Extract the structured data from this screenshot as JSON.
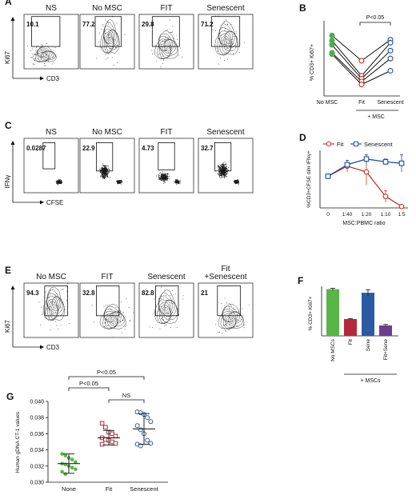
{
  "panels": {
    "A": {
      "letter": "A",
      "titles": [
        "NS",
        "No MSC",
        "FIT",
        "Senescent"
      ],
      "gate_values": [
        "10.1",
        "77.2",
        "29.8",
        "71.2"
      ],
      "x_axis": "CD3",
      "y_axis": "Ki67"
    },
    "C": {
      "letter": "C",
      "titles": [
        "NS",
        "No MSC",
        "FIT",
        "Senescent"
      ],
      "gate_values": [
        "0.0287",
        "22.9",
        "4.73",
        "32.7"
      ],
      "x_axis": "CFSE",
      "y_axis": "IFNγ"
    },
    "E": {
      "letter": "E",
      "titles": [
        "No MSC",
        "FIT",
        "Senescent",
        "Fit\n+Senescent"
      ],
      "title_lines": [
        [
          "No MSC"
        ],
        [
          "FIT"
        ],
        [
          "Senescent"
        ],
        [
          "Fit",
          "+Senescent"
        ]
      ],
      "gate_values": [
        "94.3",
        "32.8",
        "82.8",
        "21"
      ],
      "x_axis": "CD3",
      "y_axis": "Ki67"
    }
  },
  "chart_data": [
    {
      "panel": "B",
      "letter": "B",
      "type": "line",
      "categories": [
        "No MSC",
        "Fit",
        "Senescent"
      ],
      "ylabel": "% CD3+ Ki67+",
      "group_label": "+ MSC",
      "sig_label": "P<0.05",
      "series": [
        {
          "values": [
            84,
            49,
            78
          ],
          "color": "#2e7d32"
        },
        {
          "values": [
            77,
            28,
            74
          ],
          "color": "#1565c0"
        },
        {
          "values": [
            71,
            24,
            63
          ],
          "color": "#1565c0"
        },
        {
          "values": [
            60,
            20,
            52
          ],
          "color": "#1565c0"
        },
        {
          "values": [
            58,
            16,
            35
          ],
          "color": "#1565c0"
        }
      ],
      "marker_colors": {
        "No MSC": "#4caf50",
        "Fit": "#c62828",
        "Senescent": "#1f4e9c"
      },
      "ylim": [
        0,
        100
      ]
    },
    {
      "panel": "D",
      "letter": "D",
      "type": "line",
      "ylabel": "%CD3+CFSE dim IFNγ+",
      "xlabel": "MSC:PBMC ratio",
      "categories": [
        "0",
        "1:40",
        "1:20",
        "1:10",
        "1:5"
      ],
      "legend_position": "top",
      "series": [
        {
          "name": "Fit",
          "color": "#c0392b",
          "marker": "circle",
          "values": [
            22,
            29,
            25,
            8,
            1
          ],
          "errors": [
            1.5,
            4,
            9,
            4,
            1
          ]
        },
        {
          "name": "Senescent",
          "color": "#1f4e9c",
          "marker": "square",
          "values": [
            22,
            30,
            34,
            32,
            31
          ],
          "errors": [
            1.5,
            3,
            3,
            2,
            6
          ]
        }
      ],
      "ylim": [
        0,
        40
      ]
    },
    {
      "panel": "F",
      "letter": "F",
      "type": "bar",
      "categories": [
        "No MSCs",
        "Fit",
        "Sene",
        "Fit+Sene"
      ],
      "values": [
        94,
        34,
        87,
        21
      ],
      "errors": [
        2,
        1,
        6,
        2
      ],
      "colors": [
        "#59b548",
        "#b5283b",
        "#2b5aa2",
        "#6f3d8f"
      ],
      "ylabel": "% CD3+ Ki67+",
      "group_label": "+ MSCs",
      "ylim": [
        0,
        100
      ]
    },
    {
      "panel": "G",
      "letter": "G",
      "type": "scatter",
      "categories": [
        "None",
        "Fit",
        "Senescent"
      ],
      "ylabel": "Human gDNA CT-1 values",
      "yticks": [
        "0.030",
        "0.032",
        "0.034",
        "0.036",
        "0.038",
        "0.040"
      ],
      "ylim": [
        0.03,
        0.04
      ],
      "comparisons": [
        {
          "from": "None",
          "to": "Senescent",
          "label": "P<0.05"
        },
        {
          "from": "None",
          "to": "Fit",
          "label": "P<0.05"
        },
        {
          "from": "Fit",
          "to": "Senescent",
          "label": "NS"
        }
      ],
      "series": [
        {
          "category": "None",
          "color": "#59b548",
          "marker": "filled-circle",
          "mean": 0.0323,
          "sd": 0.0012,
          "values": [
            0.0335,
            0.0333,
            0.033,
            0.0328,
            0.0325,
            0.0323,
            0.0322,
            0.032,
            0.0318,
            0.0316,
            0.0313,
            0.031
          ]
        },
        {
          "category": "Fit",
          "color": "#b5283b",
          "marker": "open-square",
          "mean": 0.0355,
          "sd": 0.0009,
          "values": [
            0.0373,
            0.0368,
            0.0362,
            0.036,
            0.0357,
            0.0355,
            0.0353,
            0.0352,
            0.035,
            0.0348,
            0.0347
          ]
        },
        {
          "category": "Senescent",
          "color": "#2b5aa2",
          "marker": "open-circle",
          "mean": 0.0366,
          "sd": 0.0019,
          "values": [
            0.0387,
            0.0386,
            0.0384,
            0.038,
            0.0375,
            0.037,
            0.0365,
            0.036,
            0.0352,
            0.0348,
            0.0347,
            0.0345
          ]
        }
      ]
    }
  ]
}
